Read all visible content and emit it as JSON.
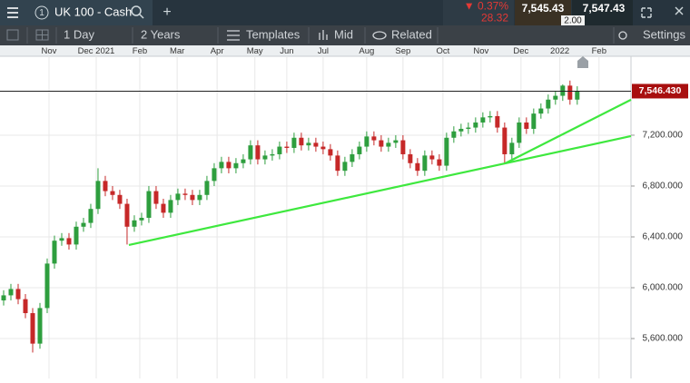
{
  "header": {
    "tab_number": "1",
    "instrument": "UK 100 - Cash",
    "change_percent": "0.37%",
    "change_points": "28.32",
    "sell": "7,545.43",
    "spread": "2.00",
    "buy": "7,547.43"
  },
  "toolbar": {
    "interval": "1 Day",
    "range": "2 Years",
    "templates": "Templates",
    "price_type": "Mid",
    "related": "Related",
    "settings": "Settings"
  },
  "chart_data": {
    "type": "candlestick",
    "up_color": "#2e9e3e",
    "down_color": "#c62828",
    "open": [
      5900,
      5940,
      5990,
      5910,
      5800,
      5560,
      5840,
      6190,
      6370,
      6390,
      6340,
      6480,
      6510,
      6620,
      6840,
      6760,
      6730,
      6660,
      6480,
      6530,
      6550,
      6760,
      6660,
      6590,
      6690,
      6740,
      6730,
      6690,
      6730,
      6840,
      6940,
      6990,
      6940,
      6980,
      7010,
      7120,
      7010,
      7040,
      7050,
      7110,
      7100,
      7180,
      7120,
      7140,
      7110,
      7090,
      7040,
      6920,
      6990,
      7050,
      7110,
      7190,
      7160,
      7110,
      7140,
      7160,
      7050,
      6980,
      6920,
      7040,
      7010,
      6960,
      7180,
      7230,
      7250,
      7260,
      7300,
      7340,
      7350,
      7260,
      7050,
      7140,
      7300,
      7250,
      7370,
      7410,
      7480,
      7510,
      7590,
      7480
    ],
    "high": [
      5980,
      6030,
      6030,
      5950,
      5840,
      5880,
      6230,
      6410,
      6430,
      6430,
      6520,
      6550,
      6660,
      6940,
      6880,
      6800,
      6770,
      6700,
      6570,
      6590,
      6800,
      6800,
      6700,
      6730,
      6780,
      6780,
      6770,
      6770,
      6880,
      6980,
      7030,
      7030,
      7020,
      7050,
      7160,
      7160,
      7080,
      7090,
      7150,
      7150,
      7220,
      7220,
      7180,
      7180,
      7150,
      7130,
      7080,
      7030,
      7090,
      7150,
      7230,
      7230,
      7200,
      7180,
      7200,
      7200,
      7090,
      7020,
      7080,
      7080,
      7050,
      7220,
      7270,
      7290,
      7300,
      7340,
      7380,
      7390,
      7390,
      7300,
      7180,
      7340,
      7340,
      7410,
      7450,
      7520,
      7550,
      7600,
      7630,
      7585
    ],
    "low": [
      5860,
      5900,
      5870,
      5760,
      5490,
      5520,
      5800,
      6150,
      6330,
      6300,
      6300,
      6440,
      6470,
      6580,
      6720,
      6690,
      6620,
      6340,
      6440,
      6490,
      6510,
      6620,
      6550,
      6550,
      6650,
      6690,
      6650,
      6650,
      6690,
      6800,
      6900,
      6900,
      6900,
      6940,
      6970,
      6970,
      6970,
      7000,
      7010,
      7060,
      7060,
      7080,
      7080,
      7070,
      7050,
      7000,
      6880,
      6880,
      6950,
      7010,
      7070,
      7120,
      7070,
      7070,
      7100,
      7010,
      6940,
      6880,
      6880,
      6970,
      6920,
      6920,
      7140,
      7190,
      7210,
      7220,
      7260,
      7300,
      7220,
      6980,
      7010,
      7100,
      7210,
      7210,
      7330,
      7370,
      7440,
      7470,
      7440,
      7440
    ],
    "close": [
      5940,
      5990,
      5910,
      5800,
      5560,
      5840,
      6190,
      6370,
      6390,
      6340,
      6480,
      6510,
      6620,
      6840,
      6760,
      6730,
      6660,
      6480,
      6530,
      6550,
      6760,
      6660,
      6590,
      6690,
      6740,
      6730,
      6690,
      6730,
      6840,
      6940,
      6990,
      6940,
      6980,
      7010,
      7120,
      7010,
      7040,
      7050,
      7110,
      7100,
      7180,
      7120,
      7140,
      7110,
      7090,
      7040,
      6920,
      6990,
      7050,
      7110,
      7190,
      7160,
      7110,
      7140,
      7160,
      7050,
      6980,
      6920,
      7040,
      7010,
      6960,
      7180,
      7230,
      7250,
      7260,
      7300,
      7340,
      7350,
      7260,
      7050,
      7140,
      7300,
      7250,
      7370,
      7410,
      7480,
      7510,
      7590,
      7480,
      7545
    ],
    "xlim": [
      -0.5,
      86.4
    ],
    "xticks": [
      {
        "value": 6.25,
        "label": "Nov"
      },
      {
        "value": 12.75,
        "label": "Dec 2021"
      },
      {
        "value": 18.75,
        "label": "Feb"
      },
      {
        "value": 23.9,
        "label": "Mar"
      },
      {
        "value": 29.4,
        "label": "Apr"
      },
      {
        "value": 34.6,
        "label": "May"
      },
      {
        "value": 39,
        "label": "Jun"
      },
      {
        "value": 44,
        "label": "Jul"
      },
      {
        "value": 50,
        "label": "Aug"
      },
      {
        "value": 55,
        "label": "Sep"
      },
      {
        "value": 60.5,
        "label": "Oct"
      },
      {
        "value": 65.75,
        "label": "Nov"
      },
      {
        "value": 71.25,
        "label": "Dec"
      },
      {
        "value": 76.6,
        "label": "2022"
      },
      {
        "value": 82,
        "label": "Feb"
      }
    ],
    "ylim": [
      5286,
      7821
    ],
    "yticks": [
      {
        "value": 5600,
        "label": "5,600.000"
      },
      {
        "value": 6000,
        "label": "6,000.000"
      },
      {
        "value": 6400,
        "label": "6,400.000"
      },
      {
        "value": 6800,
        "label": "6,800.000"
      },
      {
        "value": 7200,
        "label": "7,200.000"
      }
    ],
    "grid": true,
    "last_price": {
      "value": 7546.43,
      "label": "7,546.430",
      "color": "#a80f0f"
    },
    "trendlines": [
      {
        "x": [
          17.25,
          86.4
        ],
        "y": [
          6336,
          7193
        ],
        "color": "#3ee83e"
      },
      {
        "x": [
          69.1,
          86.4
        ],
        "y": [
          6979,
          7479
        ],
        "color": "#3ee83e"
      }
    ]
  }
}
